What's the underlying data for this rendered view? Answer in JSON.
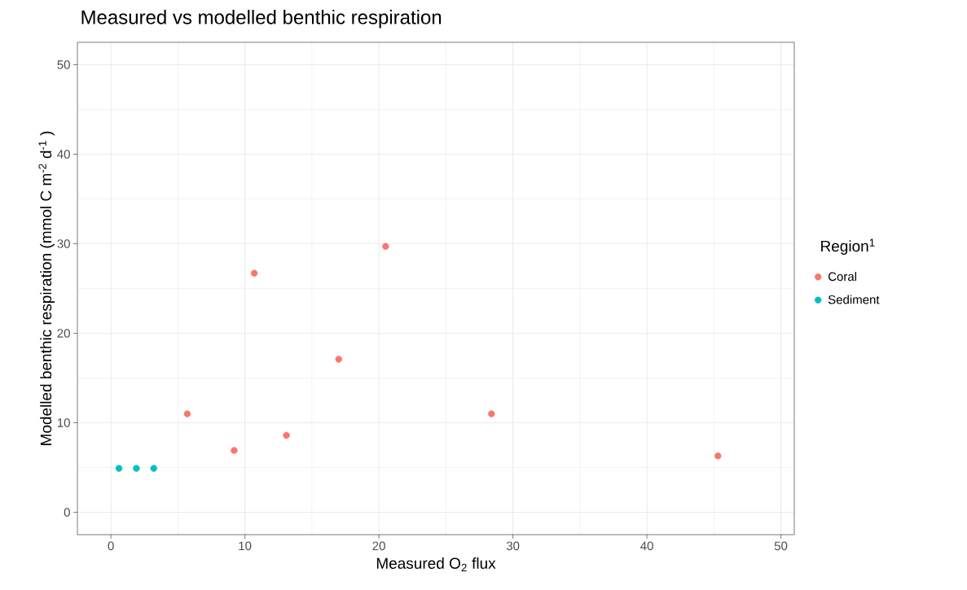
{
  "chart_data": {
    "type": "scatter",
    "title": "Measured vs modelled benthic respiration",
    "xlabel": "Measured O$_{2}$ flux",
    "ylabel": "Modelled benthic respiration (mmol C m$^{-2}$ d$^{-1}$ )",
    "legend_title": "Region$^{1}$",
    "legend": "right",
    "grid": true,
    "xlim": [
      -2.5,
      51
    ],
    "ylim": [
      -2.5,
      52.5
    ],
    "xticks": [
      0,
      10,
      20,
      30,
      40,
      50
    ],
    "yticks": [
      0,
      10,
      20,
      30,
      40,
      50
    ],
    "series": [
      {
        "name": "Coral",
        "color": "#f8766d",
        "x": [
          5.7,
          9.2,
          10.7,
          13.1,
          17.0,
          20.5,
          28.4,
          45.3
        ],
        "values": [
          11.0,
          6.9,
          26.7,
          8.6,
          17.1,
          29.7,
          11.0,
          6.3
        ]
      },
      {
        "name": "Sediment",
        "color": "#00bfc4",
        "x": [
          0.6,
          1.9,
          3.2
        ],
        "values": [
          4.9,
          4.9,
          4.9
        ]
      }
    ]
  }
}
